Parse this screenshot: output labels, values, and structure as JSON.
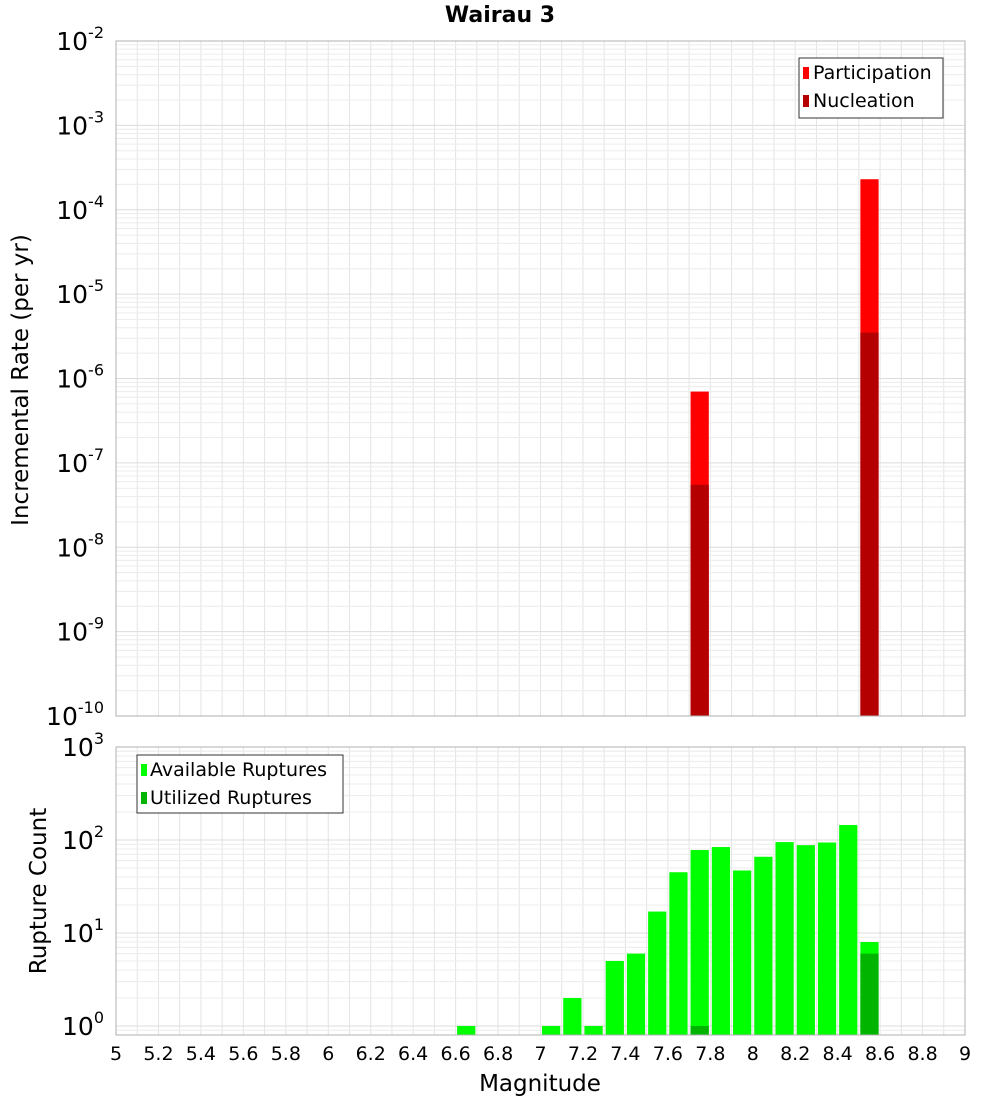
{
  "chart_data": [
    {
      "type": "bar",
      "title": "Wairau 3",
      "xlabel": "",
      "ylabel": "Incremental Rate (per yr)",
      "yscale": "log",
      "ylim": [
        1e-10,
        0.01
      ],
      "xlim": [
        5,
        9
      ],
      "grid": true,
      "legend_position": "top-right",
      "bar_width": 0.1,
      "y_tick_labels": [
        {
          "base": "10",
          "exp": "-10"
        },
        {
          "base": "10",
          "exp": "-9"
        },
        {
          "base": "10",
          "exp": "-8"
        },
        {
          "base": "10",
          "exp": "-7"
        },
        {
          "base": "10",
          "exp": "-6"
        },
        {
          "base": "10",
          "exp": "-5"
        },
        {
          "base": "10",
          "exp": "-4"
        },
        {
          "base": "10",
          "exp": "-3"
        },
        {
          "base": "10",
          "exp": "-2"
        }
      ],
      "series": [
        {
          "name": "Participation",
          "color": "#ff0000",
          "points": [
            {
              "x": 7.75,
              "y": 7e-07
            },
            {
              "x": 8.55,
              "y": 0.00023
            }
          ]
        },
        {
          "name": "Nucleation",
          "color": "#b40000",
          "points": [
            {
              "x": 7.75,
              "y": 5.5e-08
            },
            {
              "x": 8.55,
              "y": 3.5e-06
            }
          ]
        }
      ]
    },
    {
      "type": "bar",
      "xlabel": "Magnitude",
      "ylabel": "Rupture Count",
      "yscale": "log",
      "ylim": [
        0.8,
        1000
      ],
      "xlim": [
        5,
        9
      ],
      "grid": true,
      "legend_position": "top-left",
      "bar_width": 0.1,
      "x_tick_labels": [
        "5",
        "5.2",
        "5.4",
        "5.6",
        "5.8",
        "6",
        "6.2",
        "6.4",
        "6.6",
        "6.8",
        "7",
        "7.2",
        "7.4",
        "7.6",
        "7.8",
        "8",
        "8.2",
        "8.4",
        "8.6",
        "8.8",
        "9"
      ],
      "y_tick_labels": [
        {
          "base": "10",
          "exp": "0"
        },
        {
          "base": "10",
          "exp": "1"
        },
        {
          "base": "10",
          "exp": "2"
        },
        {
          "base": "10",
          "exp": "3"
        }
      ],
      "series": [
        {
          "name": "Available Ruptures",
          "color": "#00ff00",
          "points": [
            {
              "x": 6.65,
              "y": 1
            },
            {
              "x": 7.05,
              "y": 1
            },
            {
              "x": 7.15,
              "y": 2
            },
            {
              "x": 7.25,
              "y": 1
            },
            {
              "x": 7.35,
              "y": 5
            },
            {
              "x": 7.45,
              "y": 6
            },
            {
              "x": 7.55,
              "y": 17
            },
            {
              "x": 7.65,
              "y": 45
            },
            {
              "x": 7.75,
              "y": 78
            },
            {
              "x": 7.85,
              "y": 84
            },
            {
              "x": 7.95,
              "y": 47
            },
            {
              "x": 8.05,
              "y": 66
            },
            {
              "x": 8.15,
              "y": 95
            },
            {
              "x": 8.25,
              "y": 88
            },
            {
              "x": 8.35,
              "y": 94
            },
            {
              "x": 8.45,
              "y": 145
            },
            {
              "x": 8.55,
              "y": 8
            }
          ]
        },
        {
          "name": "Utilized Ruptures",
          "color": "#00b400",
          "points": [
            {
              "x": 7.75,
              "y": 1
            },
            {
              "x": 8.55,
              "y": 6
            }
          ]
        }
      ]
    }
  ]
}
